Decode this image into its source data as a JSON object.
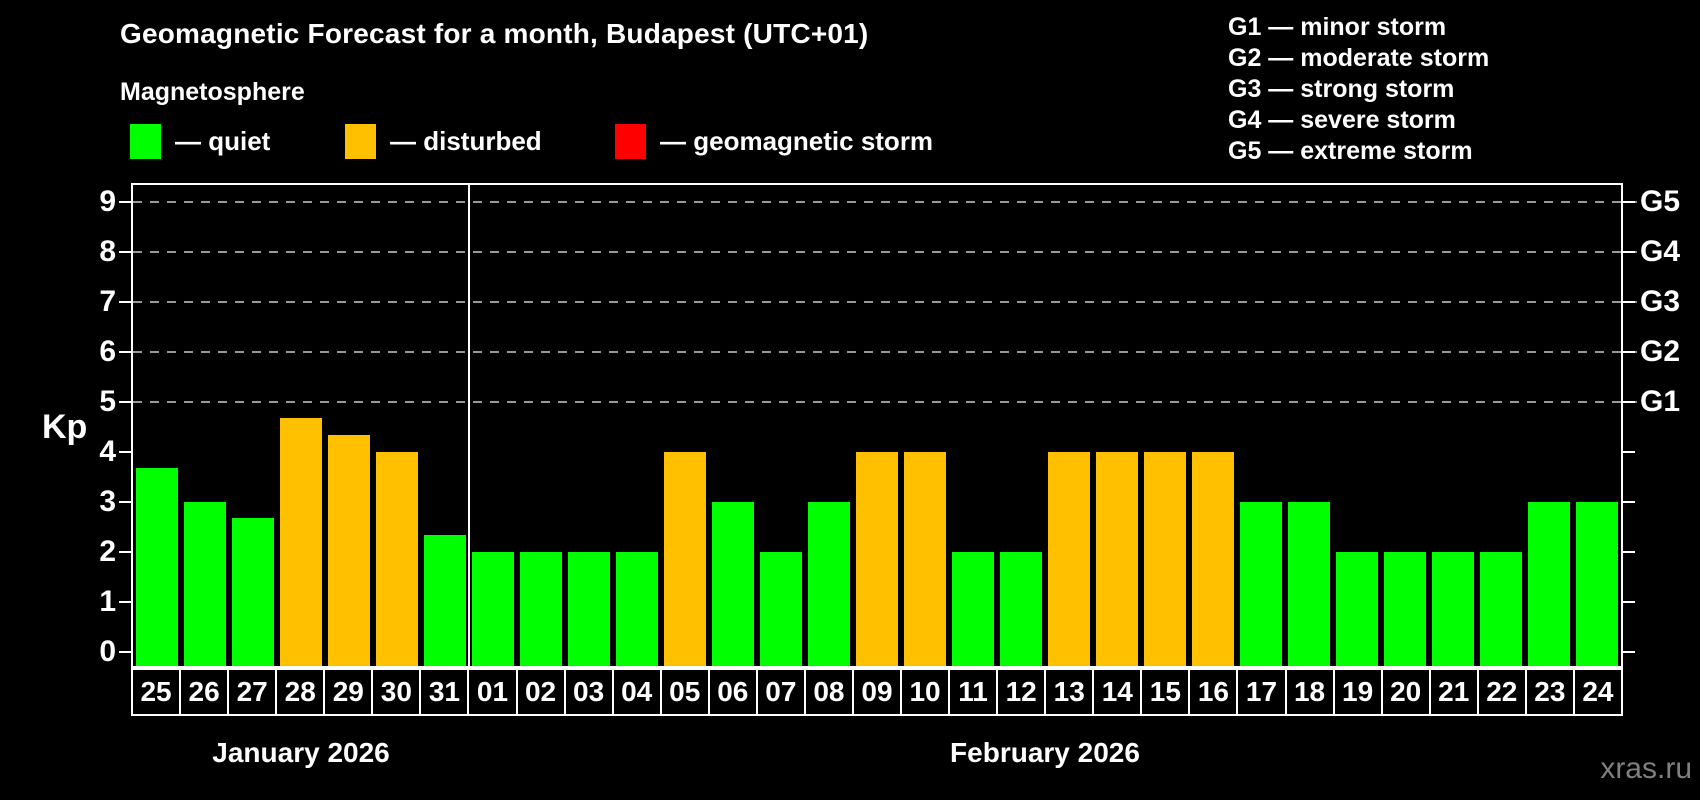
{
  "title": "Geomagnetic Forecast for a month, Budapest (UTC+01)",
  "subtitle": "Magnetosphere",
  "legend": {
    "items": [
      {
        "name": "quiet",
        "label": "— quiet",
        "color": "#00ff00"
      },
      {
        "name": "disturbed",
        "label": "— disturbed",
        "color": "#ffc000"
      },
      {
        "name": "geomagnetic-storm",
        "label": "— geomagnetic storm",
        "color": "#ff0000"
      }
    ]
  },
  "storm_scale_legend": [
    "G1 — minor storm",
    "G2 — moderate storm",
    "G3 — strong storm",
    "G4 — severe storm",
    "G5 — extreme storm"
  ],
  "watermark": "xras.ru",
  "chart_data": {
    "type": "bar",
    "title": "Geomagnetic Forecast for a month, Budapest (UTC+01)",
    "ylabel": "Kp",
    "ylim": [
      0,
      9
    ],
    "yticks": [
      0,
      1,
      2,
      3,
      4,
      5,
      6,
      7,
      8,
      9
    ],
    "gridlines_kp": [
      5,
      6,
      7,
      8,
      9
    ],
    "grid_color": "#999999",
    "right_axis_labels": [
      {
        "label": "G1",
        "kp": 5
      },
      {
        "label": "G2",
        "kp": 6
      },
      {
        "label": "G3",
        "kp": 7
      },
      {
        "label": "G4",
        "kp": 8
      },
      {
        "label": "G5",
        "kp": 9
      }
    ],
    "months": [
      {
        "label": "January 2026",
        "days": 7
      },
      {
        "label": "February 2026",
        "days": 24
      }
    ],
    "categories": [
      "25",
      "26",
      "27",
      "28",
      "29",
      "30",
      "31",
      "01",
      "02",
      "03",
      "04",
      "05",
      "06",
      "07",
      "08",
      "09",
      "10",
      "11",
      "12",
      "13",
      "14",
      "15",
      "16",
      "17",
      "18",
      "19",
      "20",
      "21",
      "22",
      "23",
      "24"
    ],
    "values": [
      3.67,
      3.0,
      2.67,
      4.67,
      4.33,
      4.0,
      2.33,
      2.0,
      2.0,
      2.0,
      2.0,
      4.0,
      3.0,
      2.0,
      3.0,
      4.0,
      4.0,
      2.0,
      2.0,
      4.0,
      4.0,
      4.0,
      4.0,
      3.0,
      3.0,
      2.0,
      2.0,
      2.0,
      2.0,
      3.0,
      3.0
    ],
    "statuses": [
      "quiet",
      "quiet",
      "quiet",
      "disturbed",
      "disturbed",
      "disturbed",
      "quiet",
      "quiet",
      "quiet",
      "quiet",
      "quiet",
      "disturbed",
      "quiet",
      "quiet",
      "quiet",
      "disturbed",
      "disturbed",
      "quiet",
      "quiet",
      "disturbed",
      "disturbed",
      "disturbed",
      "disturbed",
      "quiet",
      "quiet",
      "quiet",
      "quiet",
      "quiet",
      "quiet",
      "quiet",
      "quiet"
    ],
    "colors_by_status": {
      "quiet": "#00ff00",
      "disturbed": "#ffc000",
      "storm": "#ff0000"
    },
    "legend_position": "top"
  }
}
